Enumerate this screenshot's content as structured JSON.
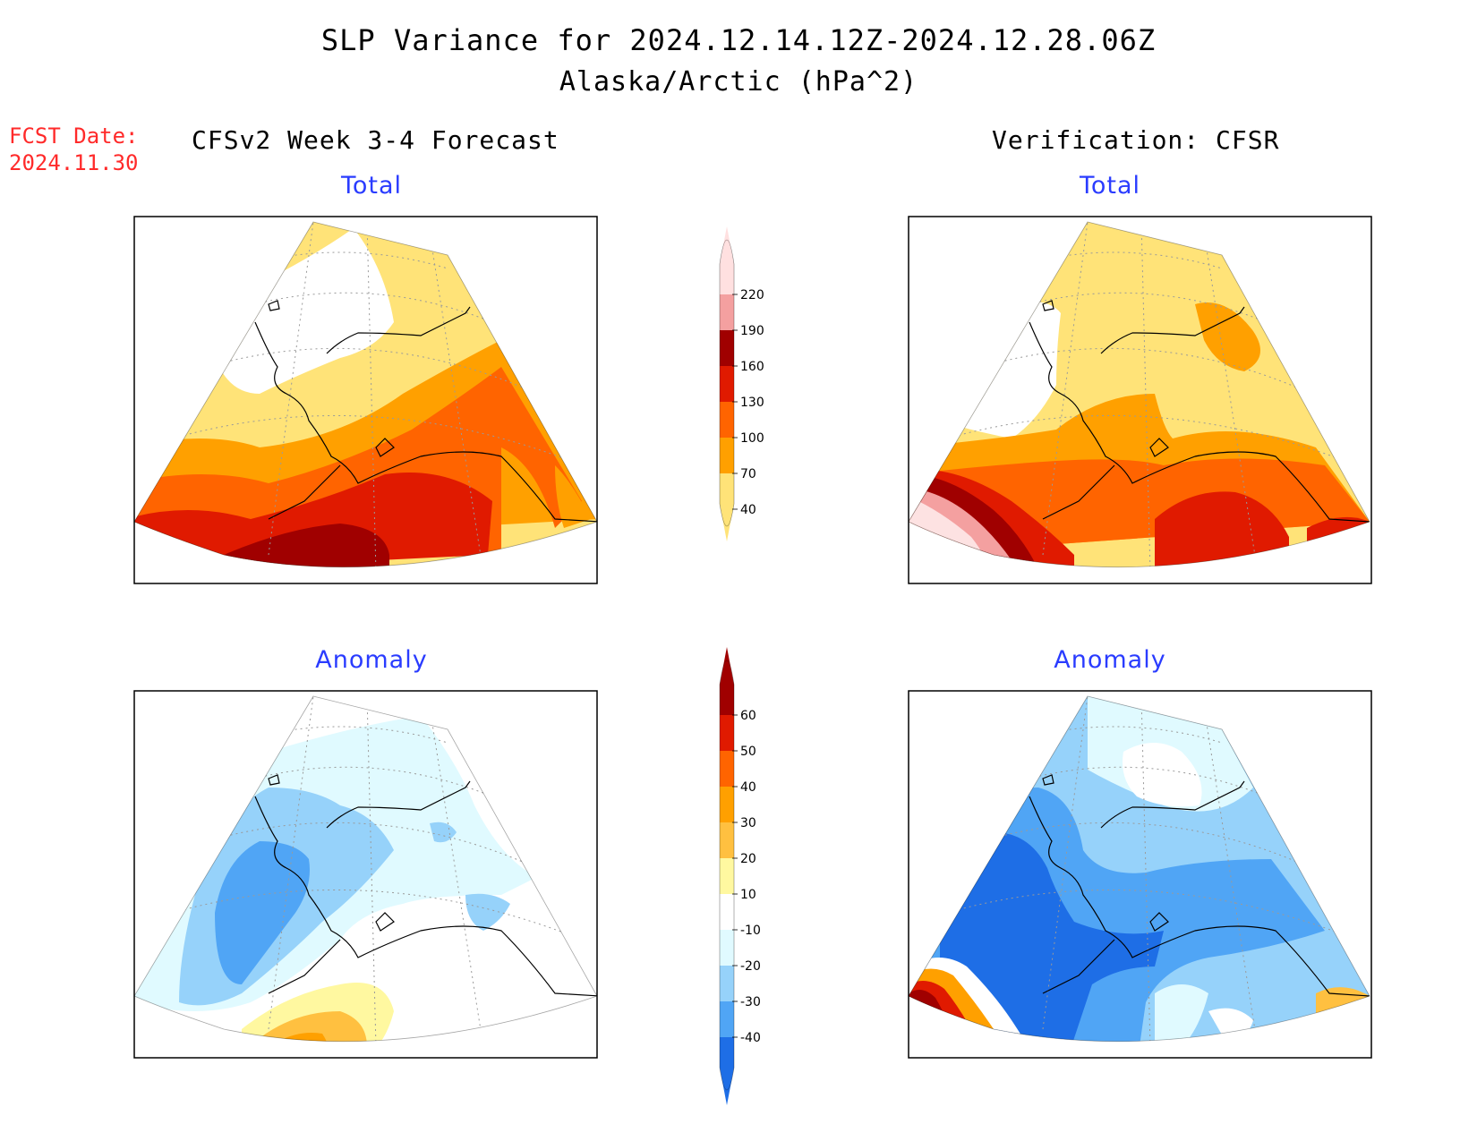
{
  "header": {
    "title": "SLP Variance for 2024.12.14.12Z-2024.12.28.06Z",
    "subtitle": "Alaska/Arctic (hPa^2)"
  },
  "fcst": {
    "label": "FCST Date:",
    "date": "2024.11.30"
  },
  "columns": {
    "left": "CFSv2 Week 3-4 Forecast",
    "right": "Verification: CFSR"
  },
  "panels": {
    "top_left": "Total",
    "top_right": "Total",
    "bottom_left": "Anomaly",
    "bottom_right": "Anomaly"
  },
  "colorbars": {
    "total": {
      "labels": [
        "220",
        "190",
        "160",
        "130",
        "100",
        "70",
        "40"
      ],
      "colors": [
        "#ffe0e0",
        "#f4a0a0",
        "#a00000",
        "#e01a00",
        "#ff6400",
        "#ffa000",
        "#ffe378"
      ]
    },
    "anomaly": {
      "labels": [
        "60",
        "50",
        "40",
        "30",
        "20",
        "10",
        "-10",
        "-20",
        "-30",
        "-40"
      ],
      "colors": [
        "#a00000",
        "#e01a00",
        "#ff6400",
        "#ffa000",
        "#ffc040",
        "#fff8a0",
        "#ffffff",
        "#e0faff",
        "#96d2fa",
        "#50a5f5",
        "#1e6ee6"
      ]
    }
  },
  "palette": {
    "map_pink": "#fde2e2",
    "map_border": "#000000"
  }
}
